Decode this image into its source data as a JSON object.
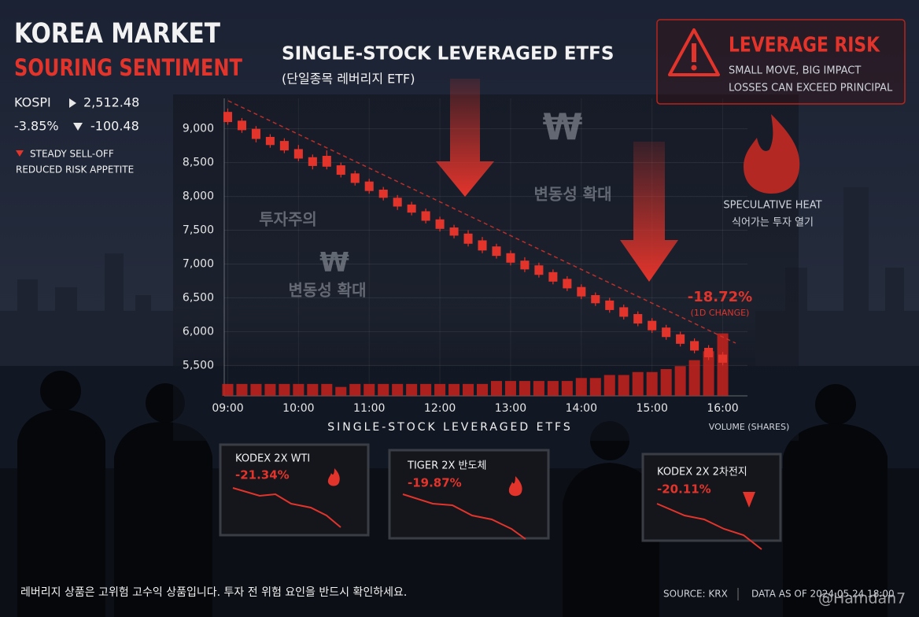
{
  "header": {
    "title": "KOREA MARKET",
    "subtitle": "SOURING SENTIMENT"
  },
  "index": {
    "name": "KOSPI",
    "value": "2,512.48",
    "change_pct": "-3.85%",
    "change": "-100.48"
  },
  "notes": [
    "STEADY SELL-OFF",
    "REDUCED RISK APPETITE"
  ],
  "risk": {
    "title": "LEVERAGE RISK",
    "lines": [
      "SMALL MOVE, BIG IMPACT",
      "LOSSES CAN EXCEED PRINCIPAL"
    ]
  },
  "heat": {
    "label": "SPECULATIVE HEAT",
    "label_ko": "식어가는 투자 열기"
  },
  "watermarks": [
    "투자주의",
    "변동성 확대",
    "변동성 확대",
    "₩",
    "₩"
  ],
  "chart_data": {
    "type": "candlestick",
    "title": "SINGLE-STOCK LEVERAGED ETFS",
    "subtitle": "(단일종목 레버리지 ETF)",
    "x_label": "SINGLE-STOCK LEVERAGED ETFS",
    "volume_label": "VOLUME (SHARES)",
    "annotation": {
      "text": "-18.72%",
      "subtext": "(1D CHANGE)"
    },
    "x": [
      9.0,
      9.2,
      9.4,
      9.6,
      9.8,
      10.0,
      10.2,
      10.4,
      10.6,
      10.8,
      11.0,
      11.2,
      11.4,
      11.6,
      11.8,
      12.0,
      12.2,
      12.4,
      12.6,
      12.8,
      13.0,
      13.2,
      13.4,
      13.6,
      13.8,
      14.0,
      14.2,
      14.4,
      14.6,
      14.8,
      15.0,
      15.2,
      15.4,
      15.6,
      15.8,
      16.0
    ],
    "open": [
      9250,
      9120,
      9000,
      8880,
      8820,
      8700,
      8580,
      8600,
      8460,
      8340,
      8220,
      8100,
      7980,
      7880,
      7780,
      7660,
      7540,
      7450,
      7350,
      7260,
      7160,
      7050,
      6980,
      6880,
      6780,
      6660,
      6540,
      6460,
      6360,
      6260,
      6160,
      6060,
      5960,
      5860,
      5760,
      5660
    ],
    "close": [
      9100,
      8980,
      8850,
      8760,
      8680,
      8560,
      8450,
      8440,
      8320,
      8200,
      8080,
      7980,
      7850,
      7760,
      7640,
      7520,
      7420,
      7300,
      7200,
      7120,
      7020,
      6920,
      6840,
      6740,
      6640,
      6520,
      6420,
      6320,
      6220,
      6120,
      6020,
      5920,
      5820,
      5720,
      5620,
      5540
    ],
    "high": [
      9300,
      9160,
      9040,
      8920,
      8860,
      8760,
      8620,
      8680,
      8500,
      8380,
      8260,
      8140,
      8020,
      7920,
      7820,
      7700,
      7580,
      7500,
      7400,
      7300,
      7200,
      7100,
      7020,
      6920,
      6820,
      6700,
      6580,
      6500,
      6400,
      6300,
      6200,
      6100,
      6000,
      5900,
      5800,
      5700
    ],
    "low": [
      9060,
      8940,
      8800,
      8720,
      8640,
      8520,
      8400,
      8400,
      8280,
      8160,
      8040,
      7940,
      7800,
      7720,
      7600,
      7480,
      7380,
      7260,
      7160,
      7080,
      6980,
      6880,
      6800,
      6700,
      6600,
      6480,
      6380,
      6280,
      6180,
      6080,
      5980,
      5880,
      5780,
      5680,
      5580,
      5500
    ],
    "volume": [
      4,
      4,
      4,
      4,
      4,
      4,
      4,
      4,
      3,
      4,
      4,
      4,
      4,
      4,
      4,
      4,
      4,
      4,
      4,
      5,
      5,
      5,
      5,
      5,
      5,
      6,
      6,
      7,
      7,
      8,
      8,
      9,
      10,
      12,
      15,
      21
    ],
    "xlim": [
      8.95,
      16.35
    ],
    "ylim": [
      5050,
      9450
    ],
    "y2lim": [
      0,
      100
    ],
    "xticks": [
      {
        "value": 9,
        "label": "09:00"
      },
      {
        "value": 10,
        "label": "10:00"
      },
      {
        "value": 11,
        "label": "11:00"
      },
      {
        "value": 12,
        "label": "12:00"
      },
      {
        "value": 13,
        "label": "13:00"
      },
      {
        "value": 14,
        "label": "14:00"
      },
      {
        "value": 15,
        "label": "15:00"
      },
      {
        "value": 16,
        "label": "16:00"
      }
    ],
    "yticks": [
      {
        "value": 5500,
        "label": "5,500"
      },
      {
        "value": 6000,
        "label": "6,000"
      },
      {
        "value": 6500,
        "label": "6,500"
      },
      {
        "value": 7000,
        "label": "7,000"
      },
      {
        "value": 7500,
        "label": "7,500"
      },
      {
        "value": 8000,
        "label": "8,000"
      },
      {
        "value": 8500,
        "label": "8,500"
      },
      {
        "value": 9000,
        "label": "9,000"
      }
    ],
    "grid": true,
    "color": "#e3342b",
    "volume_color": "#c8221c"
  },
  "cards": [
    {
      "name": "KODEX 2X WTI",
      "change": "-21.34%"
    },
    {
      "name": "TIGER 2X 반도체",
      "change": "-19.87%"
    },
    {
      "name": "KODEX 2X 2차전지",
      "change": "-20.11%"
    }
  ],
  "footer": {
    "disclaimer": "레버리지 상품은 고위험 고수익 상품입니다. 투자 전 위험 요인을 반드시 확인하세요.",
    "source": "SOURCE: KRX",
    "as_of": "DATA AS OF 2024.05.24 18:00",
    "handle": "@Hamdan7"
  }
}
